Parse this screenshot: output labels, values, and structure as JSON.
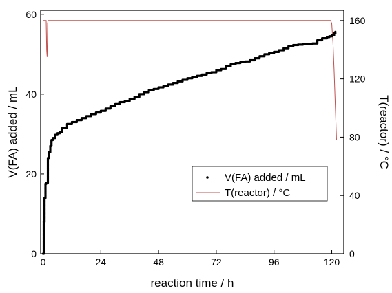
{
  "chart_data": {
    "type": "line",
    "title": "",
    "xlabel": "reaction time / h",
    "ylabel_left": "V(FA) added / mL",
    "ylabel_right": "T(reactor) / °C",
    "xlim": [
      -1,
      125
    ],
    "ylim_left": [
      0,
      61
    ],
    "ylim_right": [
      0,
      167
    ],
    "xticks": [
      0,
      24,
      48,
      72,
      96,
      120
    ],
    "yticks_left": [
      0,
      20,
      40,
      60
    ],
    "yticks_right": [
      0,
      40,
      80,
      120,
      160
    ],
    "grid": false,
    "legend_position": "lower-right",
    "series": [
      {
        "name": "V(FA) added / mL",
        "axis": "left",
        "style": "points",
        "color": "#000000",
        "x": [
          0,
          0.3,
          0.6,
          1,
          1.3,
          1.6,
          2,
          2.5,
          3,
          3.5,
          4,
          5,
          6,
          7,
          8,
          10,
          12,
          14,
          16,
          18,
          20,
          22,
          24,
          26,
          28,
          30,
          32,
          34,
          36,
          38,
          40,
          42,
          44,
          46,
          48,
          50,
          52,
          54,
          56,
          58,
          60,
          62,
          64,
          66,
          68,
          70,
          72,
          74,
          76,
          78,
          80,
          82,
          84,
          86,
          88,
          90,
          92,
          94,
          96,
          98,
          100,
          102,
          104,
          106,
          108,
          110,
          112,
          114,
          116,
          118,
          119,
          120,
          121,
          121.5
        ],
        "values": [
          0,
          8,
          14,
          17.5,
          17.8,
          17.8,
          24,
          25.5,
          27,
          28.5,
          29,
          29.8,
          30.2,
          30.5,
          31.5,
          32.5,
          33,
          33.5,
          34,
          34.5,
          35,
          35.4,
          35.8,
          36.4,
          37,
          37.5,
          38,
          38.3,
          38.8,
          39.3,
          40,
          40.5,
          41,
          41.3,
          41.7,
          42,
          42.4,
          42.8,
          43.2,
          43.6,
          44,
          44.3,
          44.6,
          44.9,
          45.3,
          45.5,
          46,
          46.3,
          47,
          47.5,
          47.8,
          48,
          48.2,
          48.5,
          49,
          49.5,
          50,
          50.3,
          50.6,
          51,
          51.5,
          52,
          52.3,
          52.4,
          52.5,
          52.5,
          52.7,
          53.5,
          54,
          54.3,
          54.5,
          54.8,
          55.3,
          55.6
        ]
      },
      {
        "name": "T(reactor) / °C",
        "axis": "right",
        "style": "line",
        "color": "#c0504d",
        "x": [
          0,
          1.3,
          1.5,
          1.7,
          1.9,
          2.1,
          4,
          10,
          20,
          30,
          40,
          50,
          60,
          70,
          80,
          90,
          100,
          110,
          118,
          119.5,
          120,
          120.5,
          121,
          121.5,
          122
        ],
        "values": [
          160,
          160,
          140,
          135,
          158,
          160,
          160,
          160,
          160,
          160,
          160,
          160,
          160,
          160,
          160,
          160,
          160,
          160,
          160,
          160,
          158,
          145,
          125,
          100,
          78
        ]
      }
    ]
  }
}
